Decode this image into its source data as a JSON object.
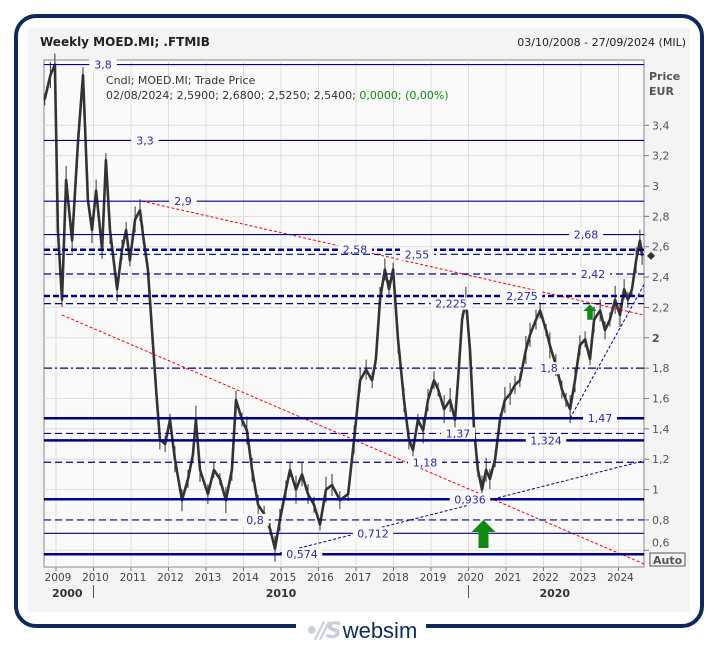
{
  "header": {
    "title": "Weekly MOED.MI; .FTMIB",
    "date_range": "03/10/2008 - 27/09/2024 (MIL)"
  },
  "legend": {
    "line1": "Cndl; MOED.MI; Trade Price",
    "line2_values": "02/08/2024; 2,5900; 2,6800; 2,5250; 2,5400;",
    "line2_change": "0,0000; (0,00%)"
  },
  "axis": {
    "price_label": "Price",
    "currency_label": "EUR",
    "auto_button": "Auto"
  },
  "logo": {
    "text": "websim"
  },
  "colors": {
    "level_line": "#00008b",
    "label_text": "#2a2aa8",
    "price_line": "#333333",
    "resistance_trend": "#ff0000",
    "support_trend": "#00008b",
    "arrow": "#118811",
    "change_text": "#118811"
  },
  "chart_data": {
    "type": "line",
    "style": "candlestick",
    "y_scale": "linear",
    "xlim": [
      2008.68,
      2024.68
    ],
    "ylim": [
      0.49,
      3.83
    ],
    "grid": true,
    "y_ticks": [
      {
        "v": 3.4,
        "t": "3,4"
      },
      {
        "v": 3.2,
        "t": "3,2"
      },
      {
        "v": 3.0,
        "t": "3"
      },
      {
        "v": 2.8,
        "t": "2,8"
      },
      {
        "v": 2.6,
        "t": "2,6"
      },
      {
        "v": 2.4,
        "t": "2,4"
      },
      {
        "v": 2.2,
        "t": "2,2"
      },
      {
        "v": 2.0,
        "t": "2"
      },
      {
        "v": 1.8,
        "t": "1,8"
      },
      {
        "v": 1.6,
        "t": "1,6"
      },
      {
        "v": 1.4,
        "t": "1,4"
      },
      {
        "v": 1.2,
        "t": "1,2"
      },
      {
        "v": 1.0,
        "t": "1"
      },
      {
        "v": 0.8,
        "t": "0,8"
      },
      {
        "v": 0.6,
        "t": "0,6"
      }
    ],
    "x_ticks": [
      "2009",
      "2010",
      "2011",
      "2012",
      "2013",
      "2014",
      "2015",
      "2016",
      "2017",
      "2018",
      "2019",
      "2020",
      "2021",
      "2022",
      "2023",
      "2024"
    ],
    "decade_labels": [
      {
        "year": 2009.3,
        "t": "2000"
      },
      {
        "year": 2015.0,
        "t": "2010"
      },
      {
        "year": 2022.3,
        "t": "2020"
      }
    ],
    "decade_separators": [
      2010,
      2020
    ],
    "last_price": 2.54,
    "series": [
      [
        2008.7,
        3.57
      ],
      [
        2008.85,
        3.73
      ],
      [
        2008.97,
        3.8
      ],
      [
        2009.05,
        2.71
      ],
      [
        2009.16,
        2.25
      ],
      [
        2009.27,
        3.04
      ],
      [
        2009.43,
        2.64
      ],
      [
        2009.59,
        3.3
      ],
      [
        2009.72,
        3.73
      ],
      [
        2009.85,
        2.91
      ],
      [
        2009.96,
        2.71
      ],
      [
        2010.07,
        2.97
      ],
      [
        2010.23,
        2.58
      ],
      [
        2010.33,
        3.17
      ],
      [
        2010.44,
        2.71
      ],
      [
        2010.63,
        2.32
      ],
      [
        2010.76,
        2.58
      ],
      [
        2010.87,
        2.71
      ],
      [
        2010.97,
        2.51
      ],
      [
        2011.11,
        2.78
      ],
      [
        2011.24,
        2.84
      ],
      [
        2011.32,
        2.68
      ],
      [
        2011.45,
        2.45
      ],
      [
        2011.56,
        2.05
      ],
      [
        2011.67,
        1.66
      ],
      [
        2011.77,
        1.33
      ],
      [
        2011.91,
        1.3
      ],
      [
        2012.04,
        1.46
      ],
      [
        2012.17,
        1.2
      ],
      [
        2012.36,
        0.93
      ],
      [
        2012.52,
        1.07
      ],
      [
        2012.65,
        1.23
      ],
      [
        2012.73,
        1.46
      ],
      [
        2012.84,
        1.13
      ],
      [
        2013.05,
        0.97
      ],
      [
        2013.21,
        1.13
      ],
      [
        2013.37,
        1.07
      ],
      [
        2013.53,
        0.93
      ],
      [
        2013.69,
        1.13
      ],
      [
        2013.8,
        1.59
      ],
      [
        2013.96,
        1.46
      ],
      [
        2014.09,
        1.39
      ],
      [
        2014.23,
        1.13
      ],
      [
        2014.39,
        0.9
      ],
      [
        2014.55,
        0.84
      ],
      [
        2014.71,
        0.74
      ],
      [
        2014.84,
        0.61
      ],
      [
        2014.97,
        0.8
      ],
      [
        2015.13,
        1.0
      ],
      [
        2015.24,
        1.13
      ],
      [
        2015.4,
        1.0
      ],
      [
        2015.56,
        1.1
      ],
      [
        2015.72,
        0.97
      ],
      [
        2015.88,
        0.9
      ],
      [
        2016.04,
        0.77
      ],
      [
        2016.2,
        1.0
      ],
      [
        2016.36,
        1.03
      ],
      [
        2016.57,
        0.93
      ],
      [
        2016.79,
        0.97
      ],
      [
        2016.95,
        1.33
      ],
      [
        2017.11,
        1.72
      ],
      [
        2017.27,
        1.79
      ],
      [
        2017.43,
        1.72
      ],
      [
        2017.53,
        1.86
      ],
      [
        2017.64,
        2.25
      ],
      [
        2017.77,
        2.45
      ],
      [
        2017.88,
        2.32
      ],
      [
        2017.99,
        2.45
      ],
      [
        2018.12,
        1.99
      ],
      [
        2018.28,
        1.59
      ],
      [
        2018.41,
        1.33
      ],
      [
        2018.52,
        1.26
      ],
      [
        2018.65,
        1.46
      ],
      [
        2018.79,
        1.39
      ],
      [
        2018.92,
        1.59
      ],
      [
        2019.08,
        1.72
      ],
      [
        2019.19,
        1.66
      ],
      [
        2019.35,
        1.53
      ],
      [
        2019.51,
        1.59
      ],
      [
        2019.64,
        1.46
      ],
      [
        2019.72,
        1.72
      ],
      [
        2019.83,
        2.12
      ],
      [
        2019.93,
        2.25
      ],
      [
        2020.04,
        1.92
      ],
      [
        2020.15,
        1.39
      ],
      [
        2020.25,
        1.13
      ],
      [
        2020.36,
        1.0
      ],
      [
        2020.47,
        1.13
      ],
      [
        2020.57,
        1.07
      ],
      [
        2020.71,
        1.2
      ],
      [
        2020.84,
        1.46
      ],
      [
        2020.97,
        1.59
      ],
      [
        2021.11,
        1.63
      ],
      [
        2021.24,
        1.69
      ],
      [
        2021.37,
        1.72
      ],
      [
        2021.53,
        1.92
      ],
      [
        2021.64,
        2.02
      ],
      [
        2021.8,
        2.12
      ],
      [
        2021.91,
        2.18
      ],
      [
        2022.07,
        2.05
      ],
      [
        2022.17,
        1.95
      ],
      [
        2022.33,
        1.82
      ],
      [
        2022.49,
        1.66
      ],
      [
        2022.6,
        1.59
      ],
      [
        2022.71,
        1.53
      ],
      [
        2022.84,
        1.72
      ],
      [
        2022.97,
        1.95
      ],
      [
        2023.11,
        1.99
      ],
      [
        2023.24,
        1.86
      ],
      [
        2023.35,
        2.12
      ],
      [
        2023.51,
        2.18
      ],
      [
        2023.64,
        2.05
      ],
      [
        2023.77,
        2.12
      ],
      [
        2023.91,
        2.25
      ],
      [
        2024.04,
        2.15
      ],
      [
        2024.15,
        2.32
      ],
      [
        2024.25,
        2.25
      ],
      [
        2024.36,
        2.32
      ],
      [
        2024.47,
        2.51
      ],
      [
        2024.57,
        2.64
      ],
      [
        2024.63,
        2.54
      ]
    ],
    "levels": [
      {
        "value": 3.8,
        "label": "3,8",
        "style": "solid",
        "weight": "thin"
      },
      {
        "value": 3.3,
        "label": "3,3",
        "style": "solid",
        "weight": "thin"
      },
      {
        "value": 2.9,
        "label": "2,9",
        "style": "solid",
        "weight": "thin"
      },
      {
        "value": 2.68,
        "label": "2,68",
        "style": "solid",
        "weight": "thin"
      },
      {
        "value": 2.58,
        "label": "2,58",
        "style": "dashed",
        "weight": "thick"
      },
      {
        "value": 2.55,
        "label": "2,55",
        "style": "dashed",
        "weight": "thin"
      },
      {
        "value": 2.42,
        "label": "2,42",
        "style": "dashed",
        "weight": "thin"
      },
      {
        "value": 2.275,
        "label": "2,275",
        "style": "dashed",
        "weight": "thick"
      },
      {
        "value": 2.225,
        "label": "2,225",
        "style": "dashed",
        "weight": "thin"
      },
      {
        "value": 1.8,
        "label": "1,8",
        "style": "dashdot",
        "weight": "thin"
      },
      {
        "value": 1.47,
        "label": "1,47",
        "style": "solid",
        "weight": "thick"
      },
      {
        "value": 1.37,
        "label": "1,37",
        "style": "dashed",
        "weight": "thin"
      },
      {
        "value": 1.324,
        "label": "1,324",
        "style": "solid",
        "weight": "thick"
      },
      {
        "value": 1.18,
        "label": "1,18",
        "style": "dashed",
        "weight": "thin"
      },
      {
        "value": 0.936,
        "label": "0,936",
        "style": "solid",
        "weight": "thick"
      },
      {
        "value": 0.8,
        "label": "0,8",
        "style": "dashed",
        "weight": "thin"
      },
      {
        "value": 0.712,
        "label": "0,712",
        "style": "solid",
        "weight": "thin"
      },
      {
        "value": 0.574,
        "label": "0,574",
        "style": "solid",
        "weight": "thick"
      }
    ],
    "trendlines": [
      {
        "kind": "resistance",
        "color": "red",
        "from": [
          2011.3,
          2.9
        ],
        "to": [
          2024.68,
          2.15
        ]
      },
      {
        "kind": "resistance",
        "color": "red",
        "from": [
          2009.16,
          2.15
        ],
        "to": [
          2024.68,
          0.51
        ]
      },
      {
        "kind": "support",
        "color": "blue",
        "from": [
          2014.84,
          0.574
        ],
        "to": [
          2024.68,
          1.19
        ]
      },
      {
        "kind": "support",
        "color": "blue",
        "from": [
          2022.71,
          1.47
        ],
        "to": [
          2024.68,
          2.35
        ]
      }
    ],
    "signals": [
      {
        "type": "buy-arrow",
        "size": "small",
        "at": [
          2023.24,
          2.22
        ]
      },
      {
        "type": "buy-arrow",
        "size": "large",
        "at": [
          2020.4,
          0.8
        ]
      }
    ]
  }
}
